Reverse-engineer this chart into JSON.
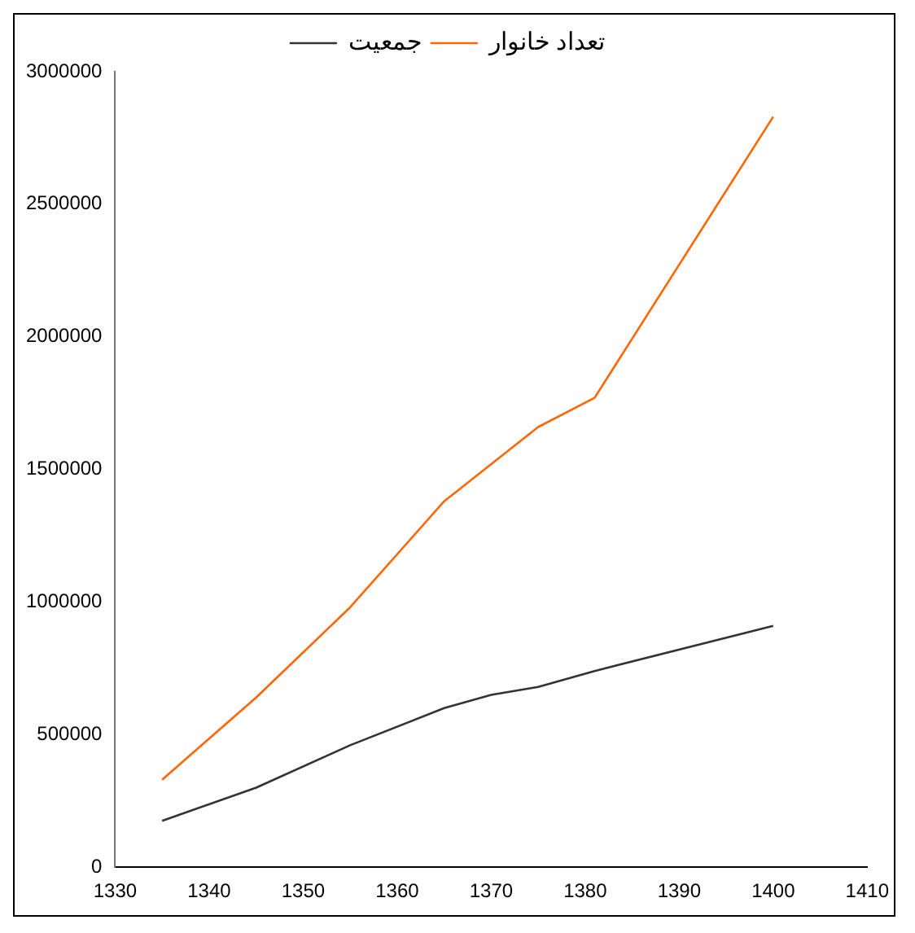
{
  "chart_data": {
    "type": "line",
    "xlim": [
      1330,
      1410
    ],
    "xticks": [
      1330,
      1340,
      1350,
      1360,
      1370,
      1380,
      1390,
      1400,
      1410
    ],
    "ylim": [
      0,
      3000000
    ],
    "yticks": [
      0,
      500000,
      1000000,
      1500000,
      2000000,
      2500000,
      3000000
    ],
    "grid": false,
    "legend": "top",
    "marker": "none",
    "line_style": "solid",
    "series": [
      {
        "name": "جمعیت",
        "color": "#333333",
        "x": [
          1335,
          1345,
          1355,
          1365,
          1370,
          1375,
          1381,
          1400
        ],
        "values": [
          175000,
          300000,
          460000,
          600000,
          650000,
          680000,
          740000,
          910000
        ]
      },
      {
        "name": "تعداد خانوار",
        "color": "#ff6600",
        "x": [
          1335,
          1345,
          1355,
          1365,
          1375,
          1381,
          1400
        ],
        "values": [
          330000,
          640000,
          980000,
          1380000,
          1660000,
          1770000,
          2830000
        ]
      }
    ]
  }
}
